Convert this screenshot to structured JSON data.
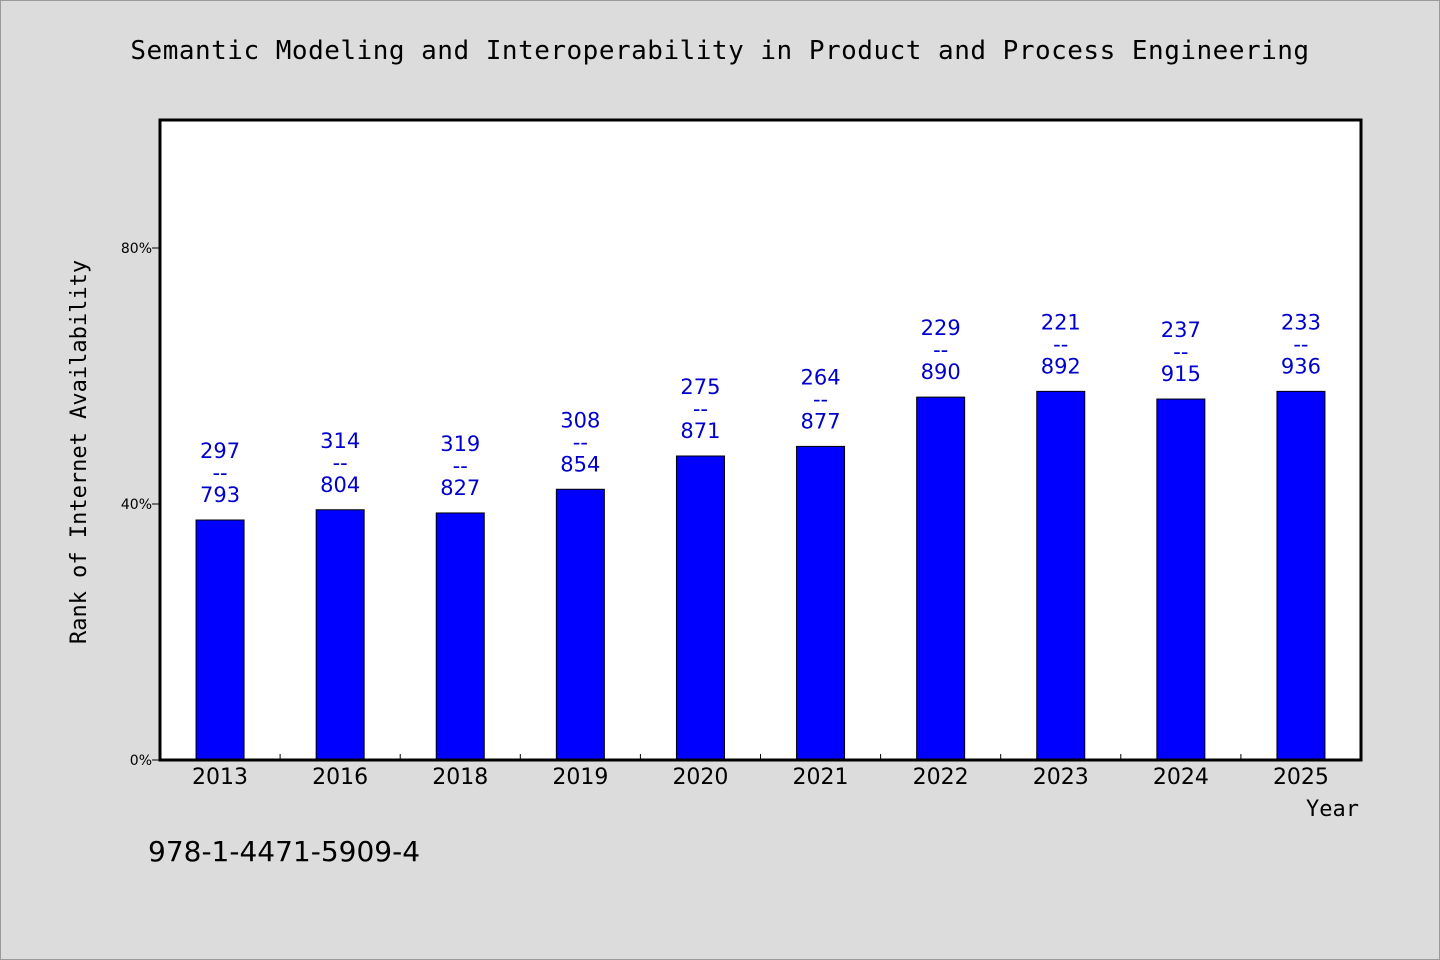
{
  "chart_data": {
    "type": "bar",
    "title": "Semantic Modeling and Interoperability in Product and Process Engineering",
    "xlabel": "Year",
    "ylabel": "Rank of Internet Availability",
    "categories": [
      "2013",
      "2016",
      "2018",
      "2019",
      "2020",
      "2021",
      "2022",
      "2023",
      "2024",
      "2025"
    ],
    "values": [
      37.5,
      39.1,
      38.6,
      42.3,
      47.5,
      49.0,
      56.7,
      57.6,
      56.4,
      57.6
    ],
    "data_labels": [
      {
        "top": "297",
        "sep": "--",
        "bottom": "793"
      },
      {
        "top": "314",
        "sep": "--",
        "bottom": "804"
      },
      {
        "top": "319",
        "sep": "--",
        "bottom": "827"
      },
      {
        "top": "308",
        "sep": "--",
        "bottom": "854"
      },
      {
        "top": "275",
        "sep": "--",
        "bottom": "871"
      },
      {
        "top": "264",
        "sep": "--",
        "bottom": "877"
      },
      {
        "top": "229",
        "sep": "--",
        "bottom": "890"
      },
      {
        "top": "221",
        "sep": "--",
        "bottom": "892"
      },
      {
        "top": "237",
        "sep": "--",
        "bottom": "915"
      },
      {
        "top": "233",
        "sep": "--",
        "bottom": "936"
      }
    ],
    "y_ticks": [
      0,
      40,
      80
    ],
    "y_tick_labels": [
      "0%",
      "40%",
      "80%"
    ],
    "ylim": [
      0,
      100
    ],
    "grid": false,
    "legend": "none",
    "bar_color": "#0000ff",
    "label_color": "#0000cc"
  },
  "footer": {
    "isbn": "978-1-4471-5909-4"
  }
}
